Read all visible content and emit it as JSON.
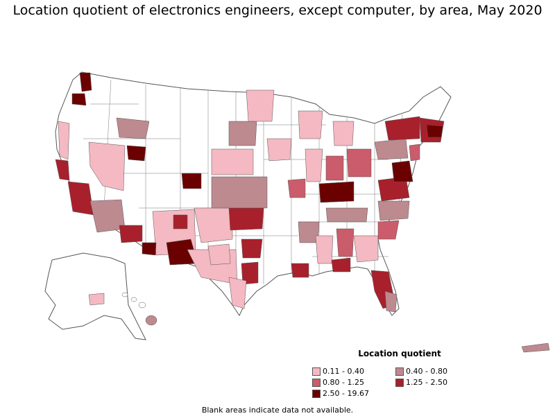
{
  "title": "Location quotient of electronics engineers, except computer, by area, May 2020",
  "legend": {
    "title": "Location quotient",
    "items": [
      {
        "label": "0.11 - 0.40",
        "color": "#f4b9c2"
      },
      {
        "label": "0.40 - 0.80",
        "color": "#bd8a8f"
      },
      {
        "label": "0.80 - 1.25",
        "color": "#cb5c6b"
      },
      {
        "label": "1.25 - 2.50",
        "color": "#a8202c"
      },
      {
        "label": "2.50 - 19.67",
        "color": "#6b0000"
      }
    ]
  },
  "footnote": "Blank areas indicate data not available.",
  "colors": {
    "outline": "#555555",
    "blank": "#ffffff"
  }
}
